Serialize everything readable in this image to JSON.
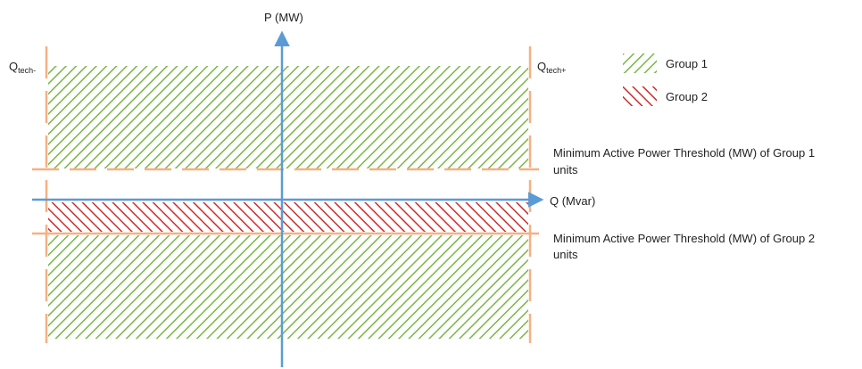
{
  "axes": {
    "y_label": "P (MW)",
    "x_label": "Q (Mvar)"
  },
  "limits": {
    "q_tech_minus": {
      "main": "Q",
      "sub": "tech-"
    },
    "q_tech_plus": {
      "main": "Q",
      "sub": "tech+"
    }
  },
  "thresholds": {
    "group1_line1": "Minimum Active Power Threshold (MW) of Group 1",
    "group1_line2": "units",
    "group2_line1": "Minimum Active Power Threshold (MW) of Group 2",
    "group2_line2": "units"
  },
  "legend": {
    "items": [
      {
        "label": "Group 1",
        "color": "#7ab648",
        "pattern": "forward-hatch"
      },
      {
        "label": "Group 2",
        "color": "#d42a2a",
        "pattern": "backward-hatch"
      }
    ]
  },
  "colors": {
    "axis": "#5b9bd5",
    "limit_lines": "#f4b183"
  }
}
